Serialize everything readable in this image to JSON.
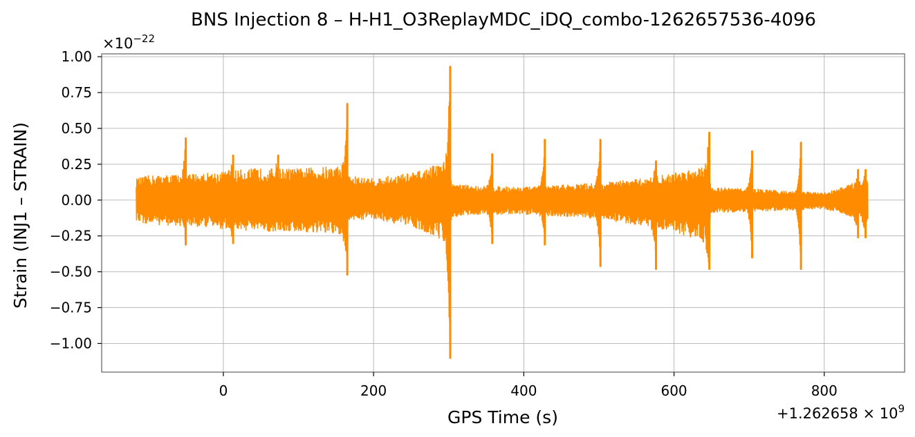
{
  "chart_data": {
    "type": "line",
    "title": "BNS Injection 8 – H-H1_O3ReplayMDC_iDQ_combo-1262657536-4096",
    "xlabel": "GPS Time (s)",
    "ylabel": "Strain (INJ1 – STRAIN)",
    "x_offset_text": "+1.262658 × 10",
    "x_offset_exponent": "9",
    "y_scale_text": "×10",
    "y_scale_exponent": "−22",
    "xlim": [
      -162,
      907
    ],
    "ylim": [
      -1.2,
      1.02
    ],
    "grid": true,
    "line_color": "#ff8c00",
    "x_ticks": [
      {
        "value": 0,
        "label": "0"
      },
      {
        "value": 200,
        "label": "200"
      },
      {
        "value": 400,
        "label": "400"
      },
      {
        "value": 600,
        "label": "600"
      },
      {
        "value": 800,
        "label": "800"
      }
    ],
    "y_ticks": [
      {
        "value": 1.0,
        "label": "1.00"
      },
      {
        "value": 0.75,
        "label": "0.75"
      },
      {
        "value": 0.5,
        "label": "0.50"
      },
      {
        "value": 0.25,
        "label": "0.25"
      },
      {
        "value": 0.0,
        "label": "0.00"
      },
      {
        "value": -0.25,
        "label": "−0.25"
      },
      {
        "value": -0.5,
        "label": "−0.50"
      },
      {
        "value": -0.75,
        "label": "−0.75"
      },
      {
        "value": -1.0,
        "label": "−1.00"
      }
    ],
    "series": [
      {
        "x_range": [
          -116,
          858
        ],
        "envelope": {
          "x": [
            -116,
            -100,
            -60,
            -20,
            0,
            40,
            100,
            160,
            166,
            200,
            260,
            300,
            304,
            330,
            400,
            500,
            560,
            600,
            645,
            650,
            700,
            760,
            800,
            858
          ],
          "upper": [
            0.15,
            0.17,
            0.18,
            0.19,
            0.2,
            0.22,
            0.22,
            0.24,
            0.17,
            0.15,
            0.2,
            0.28,
            0.12,
            0.1,
            0.09,
            0.12,
            0.15,
            0.19,
            0.25,
            0.09,
            0.08,
            0.06,
            0.05,
            0.15
          ],
          "lower": [
            -0.15,
            -0.17,
            -0.18,
            -0.19,
            -0.2,
            -0.22,
            -0.22,
            -0.25,
            -0.14,
            -0.13,
            -0.2,
            -0.3,
            -0.12,
            -0.1,
            -0.1,
            -0.13,
            -0.18,
            -0.22,
            -0.3,
            -0.09,
            -0.08,
            -0.07,
            -0.06,
            -0.16
          ]
        },
        "glitches": [
          {
            "x": -50,
            "peak": 0.43,
            "trough": -0.31
          },
          {
            "x": 13,
            "peak": 0.31,
            "trough": -0.3
          },
          {
            "x": 73,
            "peak": 0.31,
            "trough": -0.1
          },
          {
            "x": 165,
            "peak": 0.67,
            "trough": -0.52
          },
          {
            "x": 302,
            "peak": 0.93,
            "trough": -1.1
          },
          {
            "x": 358,
            "peak": 0.32,
            "trough": -0.3
          },
          {
            "x": 428,
            "peak": 0.42,
            "trough": -0.31
          },
          {
            "x": 502,
            "peak": 0.42,
            "trough": -0.46
          },
          {
            "x": 576,
            "peak": 0.27,
            "trough": -0.48
          },
          {
            "x": 647,
            "peak": 0.47,
            "trough": -0.48
          },
          {
            "x": 704,
            "peak": 0.34,
            "trough": -0.4
          },
          {
            "x": 769,
            "peak": 0.4,
            "trough": -0.48
          },
          {
            "x": 845,
            "peak": 0.21,
            "trough": -0.26
          },
          {
            "x": 855,
            "peak": 0.21,
            "trough": -0.26
          }
        ]
      }
    ]
  }
}
